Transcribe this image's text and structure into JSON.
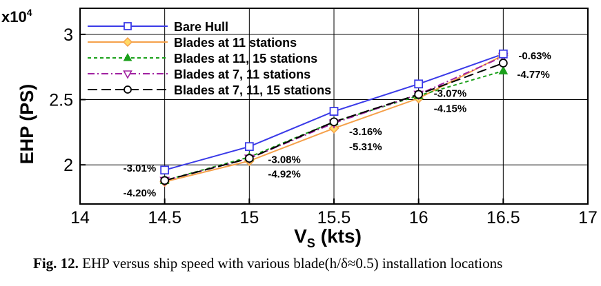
{
  "chart_data": {
    "type": "line",
    "title": "",
    "xlabel": "V",
    "xlabel_sub": "S",
    "xlabel_unit": "(kts)",
    "ylabel": "EHP (PS)",
    "y_multiplier": "x10",
    "y_multiplier_exp": "4",
    "xlim": [
      14,
      17
    ],
    "ylim": [
      1.7,
      3.2
    ],
    "xticks": [
      "14",
      "14.5",
      "15",
      "15.5",
      "16",
      "16.5",
      "17"
    ],
    "xtick_values": [
      14,
      14.5,
      15,
      15.5,
      16,
      16.5,
      17
    ],
    "yticks": [
      "2",
      "2.5",
      "3"
    ],
    "ytick_values": [
      2,
      2.5,
      3
    ],
    "grid": true,
    "legend_position": "top-left",
    "x": [
      14.5,
      15,
      15.5,
      16,
      16.5
    ],
    "series": [
      {
        "name": "Bare Hull",
        "color": "#3a3ae8",
        "dash": "solid",
        "marker": "square",
        "values": [
          1.96,
          2.14,
          2.41,
          2.62,
          2.85
        ]
      },
      {
        "name": "Blades at 11 stations",
        "color": "#f5a04a",
        "dash": "solid",
        "marker": "diamond",
        "values": [
          1.87,
          2.03,
          2.28,
          2.51,
          2.84
        ]
      },
      {
        "name": "Blades at 11, 15 stations",
        "color": "#1aa01a",
        "dash": "short",
        "marker": "triangle-up",
        "values": [
          1.88,
          2.06,
          2.33,
          2.53,
          2.72
        ]
      },
      {
        "name": "Blades at 7, 11 stations",
        "color": "#a020a0",
        "dash": "dashdot",
        "marker": "triangle-down",
        "values": [
          1.88,
          2.05,
          2.32,
          2.54,
          2.83
        ]
      },
      {
        "name": "Blades at 7, 11, 15 stations",
        "color": "#000000",
        "dash": "long",
        "marker": "circle",
        "values": [
          1.88,
          2.05,
          2.33,
          2.54,
          2.78
        ]
      }
    ],
    "annotations": [
      {
        "text": "-3.01%",
        "x": 14.5,
        "y": 1.96,
        "anchor": "left-above"
      },
      {
        "text": "-4.20%",
        "x": 14.5,
        "y": 1.87,
        "anchor": "left-below"
      },
      {
        "text": "-3.08%",
        "x": 15,
        "y": 2.03,
        "anchor": "right"
      },
      {
        "text": "-4.92%",
        "x": 15,
        "y": 2.03,
        "anchor": "right-below"
      },
      {
        "text": "-3.16%",
        "x": 15.5,
        "y": 2.28,
        "anchor": "right"
      },
      {
        "text": "-5.31%",
        "x": 15.5,
        "y": 2.28,
        "anchor": "right-below"
      },
      {
        "text": "-3.07%",
        "x": 16,
        "y": 2.51,
        "anchor": "right"
      },
      {
        "text": "-4.15%",
        "x": 16,
        "y": 2.51,
        "anchor": "right-below"
      },
      {
        "text": "-0.63%",
        "x": 16.5,
        "y": 2.84,
        "anchor": "right"
      },
      {
        "text": "-4.77%",
        "x": 16.5,
        "y": 2.72,
        "anchor": "right"
      }
    ]
  },
  "caption": {
    "label": "Fig. 12.",
    "text": "EHP versus ship speed with various blade(h/δ≈0.5) installation locations"
  }
}
